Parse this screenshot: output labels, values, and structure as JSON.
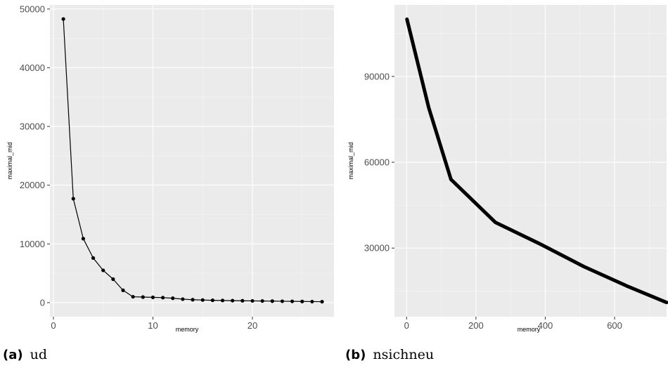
{
  "chart_data": [
    {
      "type": "line",
      "title": "",
      "xlabel": "memory",
      "ylabel": "maximal_mid",
      "caption_tag": "(a)",
      "caption_text": "ud",
      "markers": true,
      "line_width": "thin",
      "grid": true,
      "xlim": [
        -0.35,
        28.2
      ],
      "ylim": [
        -2400,
        50700
      ],
      "x_ticks": [
        0,
        10,
        20
      ],
      "y_ticks": [
        0,
        10000,
        20000,
        30000,
        40000,
        50000
      ],
      "x_tick_labels": [
        "0",
        "10",
        "20"
      ],
      "y_tick_labels": [
        "0",
        "10000",
        "20000",
        "30000",
        "40000",
        "50000"
      ],
      "series": [
        {
          "x": [
            1,
            2,
            3,
            4,
            5,
            6,
            7,
            8,
            9,
            10,
            11,
            12,
            13,
            14,
            15,
            16,
            17,
            18,
            19,
            20,
            21,
            22,
            23,
            24,
            25,
            26,
            27
          ],
          "y": [
            48300,
            17700,
            10900,
            7600,
            5500,
            4000,
            2100,
            1000,
            950,
            900,
            850,
            750,
            600,
            500,
            450,
            400,
            370,
            340,
            320,
            300,
            280,
            260,
            240,
            220,
            200,
            180,
            160
          ]
        }
      ]
    },
    {
      "type": "line",
      "title": "",
      "xlabel": "memory",
      "ylabel": "maximal_mid",
      "caption_tag": "(b)",
      "caption_text": "nsichneu",
      "markers": false,
      "line_width": "thick",
      "grid": true,
      "xlim": [
        -35,
        750
      ],
      "ylim": [
        6000,
        115000
      ],
      "x_ticks": [
        0,
        200,
        400,
        600
      ],
      "y_ticks": [
        30000,
        60000,
        90000
      ],
      "x_tick_labels": [
        "0",
        "200",
        "400",
        "600"
      ],
      "y_tick_labels": [
        "30000",
        "60000",
        "90000"
      ],
      "series": [
        {
          "x": [
            1,
            64,
            128,
            256,
            384,
            512,
            640,
            750
          ],
          "y": [
            110000,
            79000,
            54000,
            39000,
            31500,
            23500,
            16500,
            11000
          ]
        }
      ]
    }
  ]
}
